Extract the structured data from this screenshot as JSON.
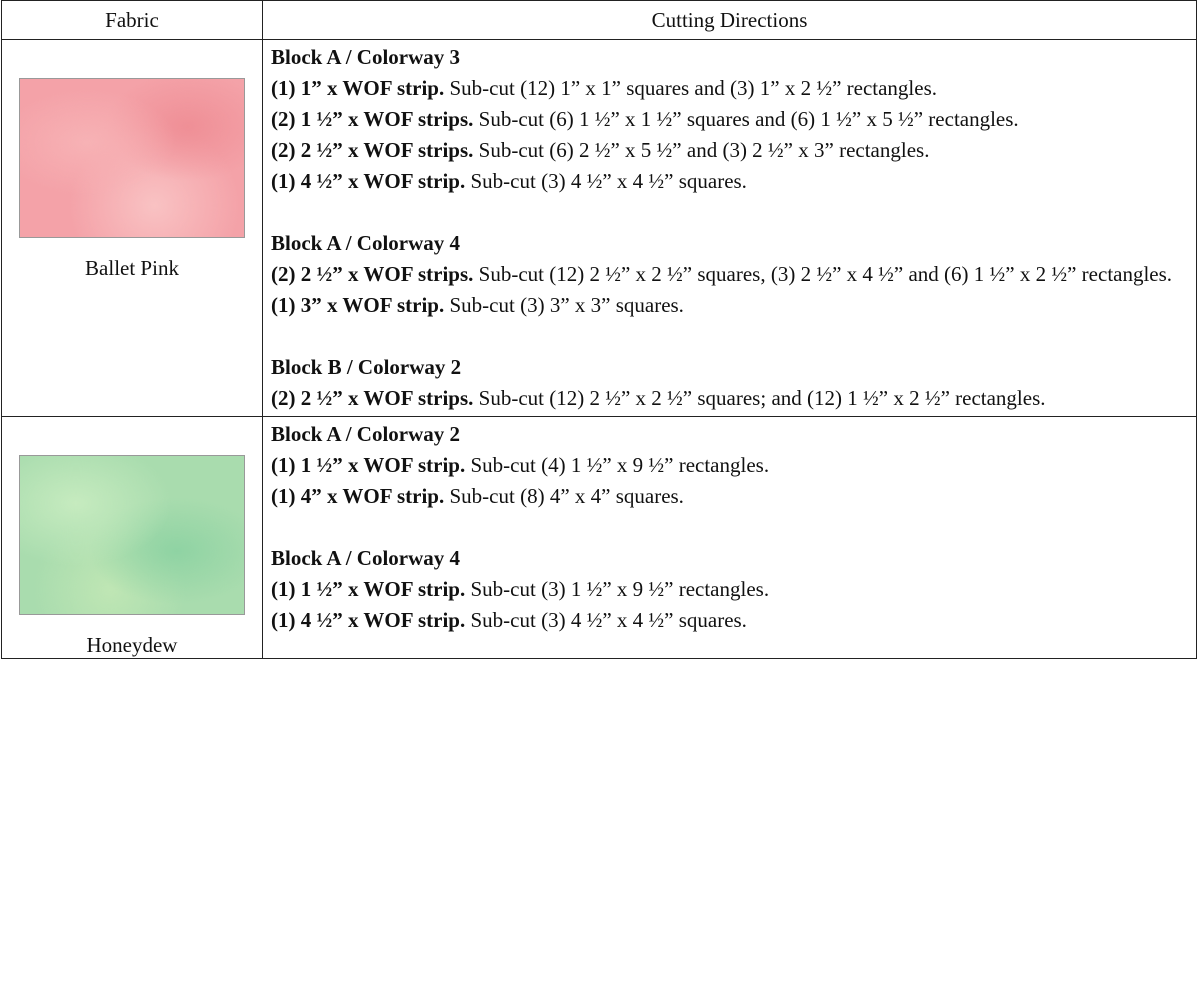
{
  "table": {
    "header": [
      "Fabric",
      "Cutting Directions"
    ],
    "rows": [
      {
        "fabric": "Ballet Pink",
        "sections": [
          {
            "heading": "Block A / Colorway 3",
            "lines": [
              {
                "bold": "(1) 1” x WOF strip.",
                "text": "Sub-cut (12) 1” x 1” squares and (3) 1” x 2 ½” rectangles."
              },
              {
                "bold": "(2) 1 ½” x WOF strips.",
                "text": "Sub-cut (6) 1 ½” x 1 ½” squares and (6) 1 ½” x 5 ½” rectangles."
              },
              {
                "bold": "(2) 2 ½” x WOF strips.",
                "text": "Sub-cut (6) 2 ½” x 5 ½” and (3) 2 ½” x 3” rectangles."
              },
              {
                "bold": "(1) 4 ½” x WOF strip.",
                "text": "Sub-cut (3) 4 ½” x 4 ½” squares."
              }
            ]
          },
          {
            "heading": "Block A / Colorway 4",
            "lines": [
              {
                "bold": "(2) 2 ½” x WOF strips.",
                "text": "Sub-cut (12) 2 ½” x 2 ½” squares, (3) 2 ½” x 4 ½” and (6) 1 ½” x 2 ½” rectangles."
              },
              {
                "bold": "(1) 3” x WOF strip.",
                "text": "Sub-cut (3) 3” x 3” squares."
              }
            ]
          },
          {
            "heading": "Block B / Colorway 2",
            "lines": [
              {
                "bold": "(2) 2 ½” x WOF strips.",
                "text": "Sub-cut (12) 2 ½” x 2 ½” squares; and (12) 1 ½” x 2 ½” rectangles."
              }
            ]
          }
        ]
      },
      {
        "fabric": "Honeydew",
        "sections": [
          {
            "heading": "Block A / Colorway 2",
            "lines": [
              {
                "bold": "(1) 1 ½” x WOF strip.",
                "text": "Sub-cut (4) 1 ½” x 9 ½” rectangles."
              },
              {
                "bold": "(1) 4” x WOF strip.",
                "text": "Sub-cut (8) 4” x 4” squares."
              }
            ]
          },
          {
            "heading": "Block A / Colorway 4",
            "lines": [
              {
                "bold": "(1) 1 ½” x WOF strip.",
                "text": "Sub-cut (3) 1 ½” x 9 ½” rectangles."
              },
              {
                "bold": "(1) 4 ½” x WOF strip.",
                "text": "Sub-cut (3) 4 ½” x 4 ½” squares."
              }
            ]
          }
        ]
      }
    ]
  }
}
